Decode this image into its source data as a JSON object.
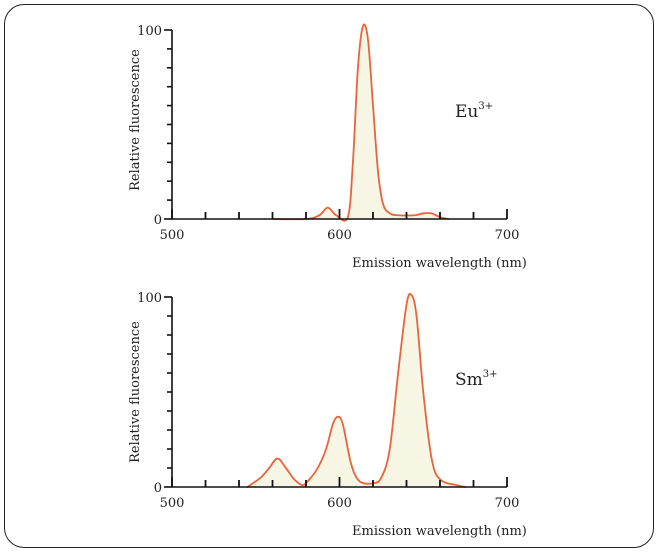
{
  "chart_data": [
    {
      "type": "area",
      "ion": {
        "symbol": "Eu",
        "charge": "3+"
      },
      "xlabel": "Emission wavelength (nm)",
      "ylabel": "Relative fluorescence",
      "xlim": [
        500,
        700
      ],
      "ylim": [
        0,
        100
      ],
      "x_ticks": [
        500,
        600,
        700
      ],
      "y_ticks": [
        0,
        100
      ],
      "x": [
        560,
        580,
        588,
        593,
        598,
        605,
        608,
        611,
        614,
        617,
        620,
        623,
        626,
        630,
        635,
        645,
        650,
        655,
        660,
        665
      ],
      "y": [
        0,
        0,
        2,
        6,
        2,
        1,
        30,
        80,
        102,
        95,
        60,
        25,
        8,
        3,
        2,
        2,
        3,
        3,
        1,
        0
      ],
      "colors": {
        "line": "#e8643c",
        "fill": "#f7f6e4"
      }
    },
    {
      "type": "area",
      "ion": {
        "symbol": "Sm",
        "charge": "3+"
      },
      "xlabel": "Emission wavelength (nm)",
      "ylabel": "Relative fluorescence",
      "xlim": [
        500,
        700
      ],
      "ylim": [
        0,
        100
      ],
      "x_ticks": [
        500,
        600,
        700
      ],
      "y_ticks": [
        0,
        100
      ],
      "x": [
        545,
        553,
        558,
        563,
        568,
        573,
        578,
        582,
        587,
        592,
        596,
        599,
        602,
        607,
        612,
        620,
        625,
        630,
        635,
        640,
        643,
        646,
        650,
        655,
        660,
        670,
        675
      ],
      "y": [
        0,
        5,
        10,
        15,
        10,
        4,
        1,
        4,
        10,
        20,
        33,
        37,
        33,
        12,
        3,
        2,
        5,
        20,
        60,
        96,
        101,
        90,
        50,
        15,
        4,
        1,
        0
      ],
      "colors": {
        "line": "#e8643c",
        "fill": "#f7f6e4"
      }
    }
  ]
}
